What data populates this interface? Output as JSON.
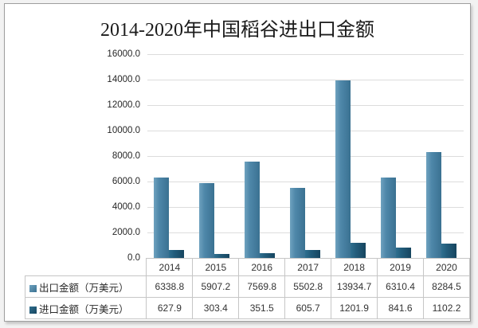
{
  "card": {
    "title": "2014-2020年中国稻谷进出口金额"
  },
  "chart_data": {
    "type": "bar",
    "title": "2014-2020年中国稻谷进出口金额",
    "categories": [
      "2014",
      "2015",
      "2016",
      "2017",
      "2018",
      "2019",
      "2020"
    ],
    "series": [
      {
        "name": "出口金额（万美元）",
        "values": [
          6338.8,
          5907.2,
          7569.8,
          5502.8,
          13934.7,
          6310.4,
          8284.5
        ],
        "color": "#4e87a9",
        "color_light": "#6fa2bf",
        "color_dark": "#3a7191"
      },
      {
        "name": "进口金额（万美元）",
        "values": [
          627.9,
          303.4,
          351.5,
          605.7,
          1201.9,
          841.6,
          1102.2
        ],
        "color": "#235d7c",
        "color_light": "#2f6f8f",
        "color_dark": "#16455f"
      }
    ],
    "ylim": [
      0,
      16000
    ],
    "ytick_step": 2000,
    "ytick_decimals": 1,
    "value_decimals": 1,
    "grid": true,
    "legend_position": "data-table-left",
    "gridline_color": "#dcdcdc"
  }
}
